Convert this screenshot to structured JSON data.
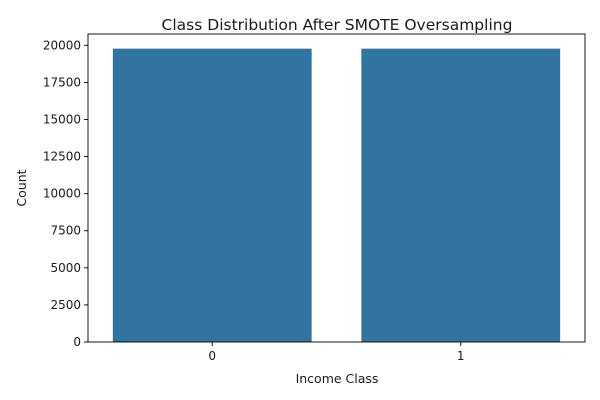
{
  "chart_data": {
    "type": "bar",
    "title": "Class Distribution After SMOTE Oversampling",
    "xlabel": "Income Class",
    "ylabel": "Count",
    "categories": [
      "0",
      "1"
    ],
    "values": [
      19775,
      19775
    ],
    "ylim": [
      0,
      20763
    ],
    "yticks": [
      0,
      2500,
      5000,
      7500,
      10000,
      12500,
      15000,
      17500,
      20000
    ],
    "grid": false,
    "legend": "none",
    "bar_color": "#3274a1"
  }
}
